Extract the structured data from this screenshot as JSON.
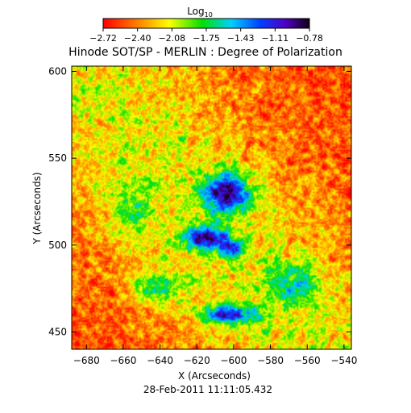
{
  "chart_data": {
    "type": "heatmap",
    "title": "Hinode SOT/SP - MERLIN : Degree of Polarization",
    "subtitle": "28-Feb-2011 11:11:05.432",
    "xlabel": "X (Arcseconds)",
    "ylabel": "Y (Arcseconds)",
    "xlim": [
      -688,
      -536
    ],
    "ylim": [
      440,
      603
    ],
    "x_ticks": [
      -680,
      -660,
      -640,
      -620,
      -600,
      -580,
      -560,
      -540
    ],
    "y_ticks": [
      450,
      500,
      550,
      600
    ],
    "colorbar": {
      "label_base": "Log",
      "label_sub": "10",
      "ticks": [
        "-2.72",
        "-2.40",
        "-2.08",
        "-1.75",
        "-1.43",
        "-1.11",
        "-0.78"
      ],
      "range": [
        -2.72,
        -0.78
      ],
      "colormap": "rainbow"
    },
    "features": [
      {
        "x": -604,
        "y": 530,
        "sx": 9,
        "sy": 8,
        "amp": 1.3
      },
      {
        "x": -616,
        "y": 504,
        "sx": 8,
        "sy": 5,
        "amp": 1.2
      },
      {
        "x": -601,
        "y": 498,
        "sx": 4,
        "sy": 4,
        "amp": 1.0
      },
      {
        "x": -603,
        "y": 460,
        "sx": 11,
        "sy": 4,
        "amp": 1.1
      },
      {
        "x": -568,
        "y": 478,
        "sx": 10,
        "sy": 8,
        "amp": 0.55
      },
      {
        "x": -640,
        "y": 475,
        "sx": 10,
        "sy": 7,
        "amp": 0.6
      },
      {
        "x": -655,
        "y": 520,
        "sx": 8,
        "sy": 12,
        "amp": 0.45
      }
    ],
    "baseline_log": -2.55
  }
}
